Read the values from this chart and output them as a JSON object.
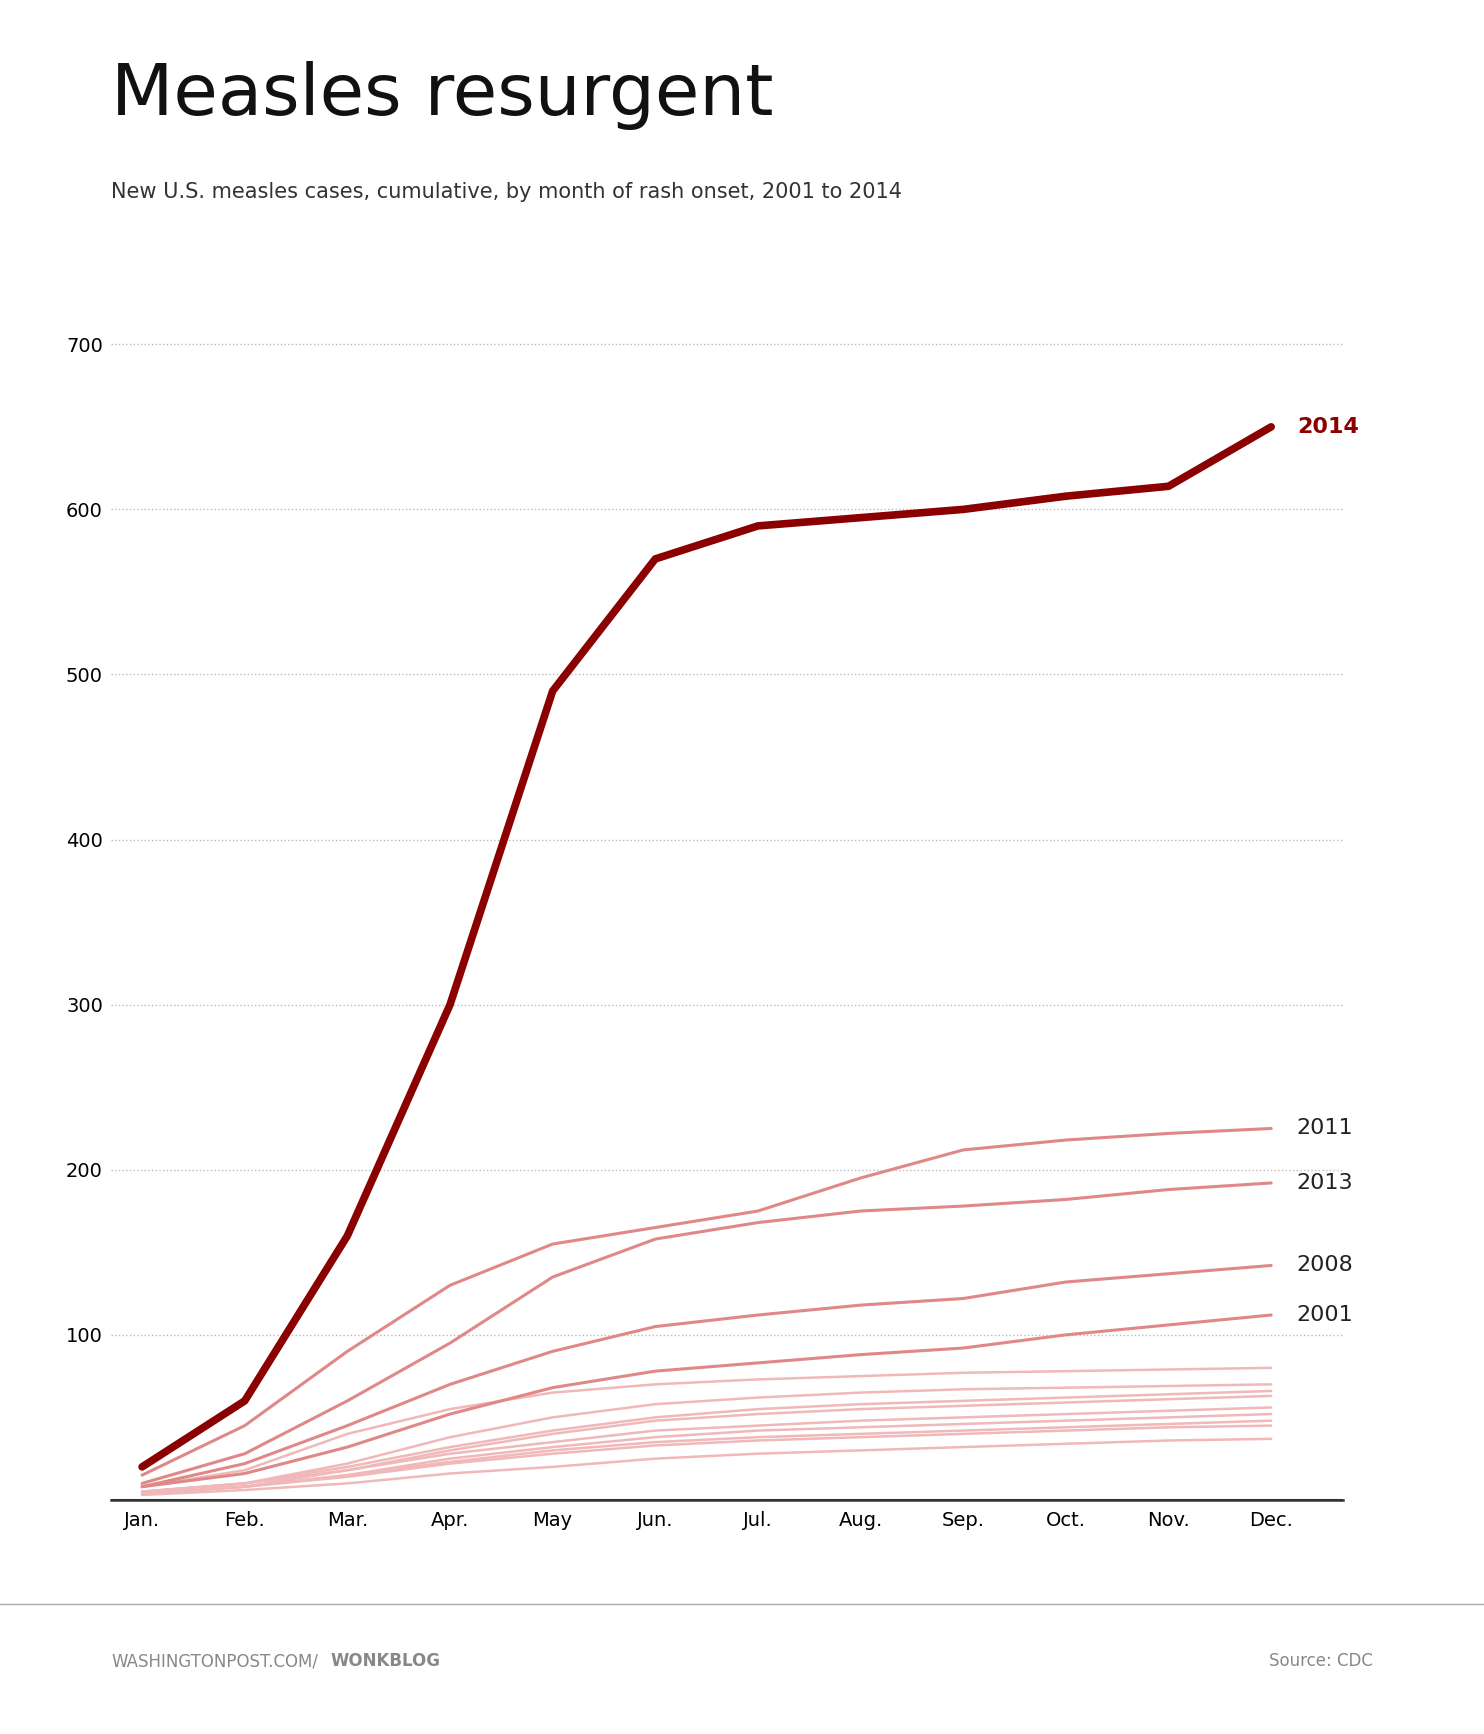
{
  "title": "Measles resurgent",
  "subtitle": "New U.S. measles cases, cumulative, by month of rash onset, 2001 to 2014",
  "footer_left_normal": "WASHINGTONPOST.COM/",
  "footer_left_bold": "WONKBLOG",
  "footer_right": "Source: CDC",
  "months": [
    "Jan.",
    "Feb.",
    "Mar.",
    "Apr.",
    "May",
    "Jun.",
    "Jul.",
    "Aug.",
    "Sep.",
    "Oct.",
    "Nov.",
    "Dec."
  ],
  "ylim": [
    0,
    730
  ],
  "yticks": [
    0,
    100,
    200,
    300,
    400,
    500,
    600,
    700
  ],
  "series": {
    "2014": [
      20,
      60,
      160,
      300,
      490,
      570,
      590,
      595,
      600,
      608,
      614,
      650
    ],
    "2011": [
      15,
      45,
      90,
      130,
      155,
      165,
      175,
      195,
      212,
      218,
      222,
      225
    ],
    "2013": [
      10,
      28,
      60,
      95,
      135,
      158,
      168,
      175,
      178,
      182,
      188,
      192
    ],
    "2008": [
      8,
      22,
      45,
      70,
      90,
      105,
      112,
      118,
      122,
      132,
      137,
      142
    ],
    "2001": [
      8,
      16,
      32,
      52,
      68,
      78,
      83,
      88,
      92,
      100,
      106,
      112
    ],
    "2002": [
      5,
      10,
      18,
      28,
      35,
      42,
      45,
      48,
      50,
      52,
      54,
      56
    ],
    "2003": [
      4,
      8,
      14,
      22,
      28,
      33,
      36,
      38,
      40,
      42,
      44,
      45
    ],
    "2004": [
      3,
      6,
      10,
      16,
      20,
      25,
      28,
      30,
      32,
      34,
      36,
      37
    ],
    "2005": [
      4,
      8,
      15,
      25,
      32,
      38,
      42,
      44,
      46,
      48,
      50,
      52
    ],
    "2006": [
      4,
      8,
      15,
      23,
      30,
      35,
      38,
      40,
      42,
      44,
      46,
      48
    ],
    "2007": [
      4,
      8,
      18,
      30,
      40,
      48,
      52,
      55,
      57,
      59,
      61,
      63
    ],
    "2009": [
      5,
      10,
      20,
      32,
      42,
      50,
      55,
      58,
      60,
      62,
      64,
      66
    ],
    "2010": [
      5,
      10,
      22,
      38,
      50,
      58,
      62,
      65,
      67,
      68,
      69,
      70
    ],
    "2012": [
      8,
      18,
      40,
      55,
      65,
      70,
      73,
      75,
      77,
      78,
      79,
      80
    ]
  },
  "highlighted_years": [
    "2014",
    "2011",
    "2013",
    "2008",
    "2001"
  ],
  "highlight_color_2014": "#8B0000",
  "highlight_color_others": "#e08888",
  "other_color": "#f0b8b8",
  "background_color": "#ffffff",
  "grid_color": "#bbbbbb",
  "axis_color": "#222222",
  "footer_line_color": "#aaaaaa",
  "title_fontsize": 52,
  "subtitle_fontsize": 15,
  "tick_fontsize": 14,
  "label_fontsize": 16,
  "footer_fontsize": 12
}
